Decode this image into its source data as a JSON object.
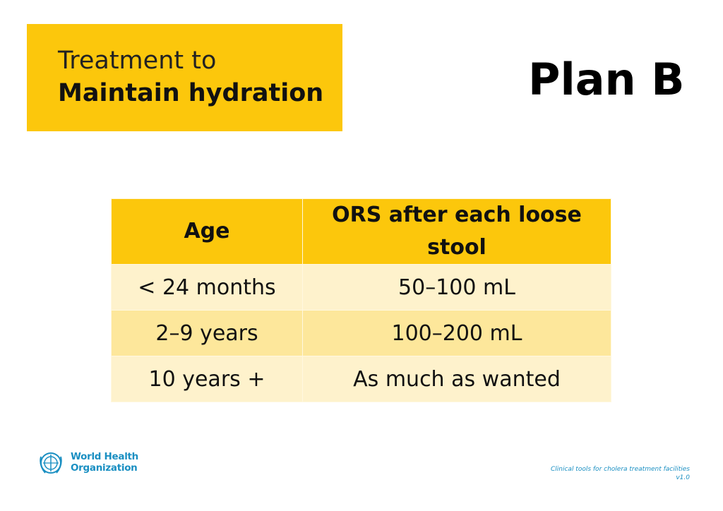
{
  "header": {
    "line1": "Treatment to",
    "line2": "Maintain hydration"
  },
  "plan": "Plan B",
  "table": {
    "columns": [
      "Age",
      "ORS after each loose stool"
    ],
    "rows": [
      [
        "< 24 months",
        "50–100 mL"
      ],
      [
        "2–9 years",
        "100–200 mL"
      ],
      [
        "10 years +",
        "As much as wanted"
      ]
    ]
  },
  "logo": {
    "line1": "World Health",
    "line2": "Organization"
  },
  "footer": {
    "note": "Clinical tools for cholera treatment facilities",
    "version": "v1.0"
  }
}
